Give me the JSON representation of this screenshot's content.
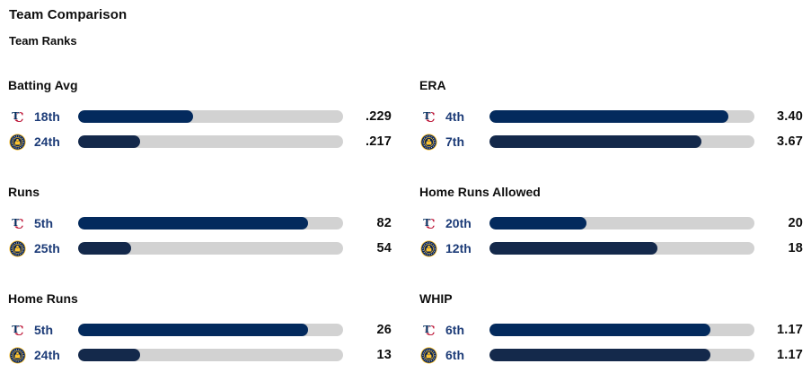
{
  "header": {
    "title": "Team Comparison",
    "subtitle": "Team Ranks"
  },
  "colors": {
    "bar_track": "#d2d2d2",
    "rank_label": "#1d3c78",
    "twins_bar": "#032a5d",
    "brewers_bar": "#14294b",
    "twins_red": "#ba0c2f",
    "twins_navy": "#002b5c",
    "brewers_gold": "#ffc52f",
    "brewers_navy": "#0a2351",
    "value_text": "#0f0f0f"
  },
  "chart_data": {
    "type": "bar",
    "title": "Team Comparison",
    "subtitle": "Team Ranks",
    "orientation": "horizontal",
    "rank_scale_max": 30,
    "note": "bar fill length = (rank_scale_max + 1 - rank) / rank_scale_max",
    "teams": [
      {
        "id": "twins",
        "logo": "twins-logo",
        "name": "Minnesota Twins"
      },
      {
        "id": "brewers",
        "logo": "brewers-logo",
        "name": "Milwaukee Brewers"
      }
    ],
    "sections": [
      {
        "stat": "Batting Avg",
        "rows": [
          {
            "team": "twins",
            "rank": 18,
            "rank_label": "18th",
            "value": ".229"
          },
          {
            "team": "brewers",
            "rank": 24,
            "rank_label": "24th",
            "value": ".217"
          }
        ]
      },
      {
        "stat": "ERA",
        "rows": [
          {
            "team": "twins",
            "rank": 4,
            "rank_label": "4th",
            "value": "3.40"
          },
          {
            "team": "brewers",
            "rank": 7,
            "rank_label": "7th",
            "value": "3.67"
          }
        ]
      },
      {
        "stat": "Runs",
        "rows": [
          {
            "team": "twins",
            "rank": 5,
            "rank_label": "5th",
            "value": "82"
          },
          {
            "team": "brewers",
            "rank": 25,
            "rank_label": "25th",
            "value": "54"
          }
        ]
      },
      {
        "stat": "Home Runs Allowed",
        "rows": [
          {
            "team": "twins",
            "rank": 20,
            "rank_label": "20th",
            "value": "20"
          },
          {
            "team": "brewers",
            "rank": 12,
            "rank_label": "12th",
            "value": "18"
          }
        ]
      },
      {
        "stat": "Home Runs",
        "rows": [
          {
            "team": "twins",
            "rank": 5,
            "rank_label": "5th",
            "value": "26"
          },
          {
            "team": "brewers",
            "rank": 24,
            "rank_label": "24th",
            "value": "13"
          }
        ]
      },
      {
        "stat": "WHIP",
        "rows": [
          {
            "team": "twins",
            "rank": 6,
            "rank_label": "6th",
            "value": "1.17"
          },
          {
            "team": "brewers",
            "rank": 6,
            "rank_label": "6th",
            "value": "1.17"
          }
        ]
      }
    ]
  }
}
